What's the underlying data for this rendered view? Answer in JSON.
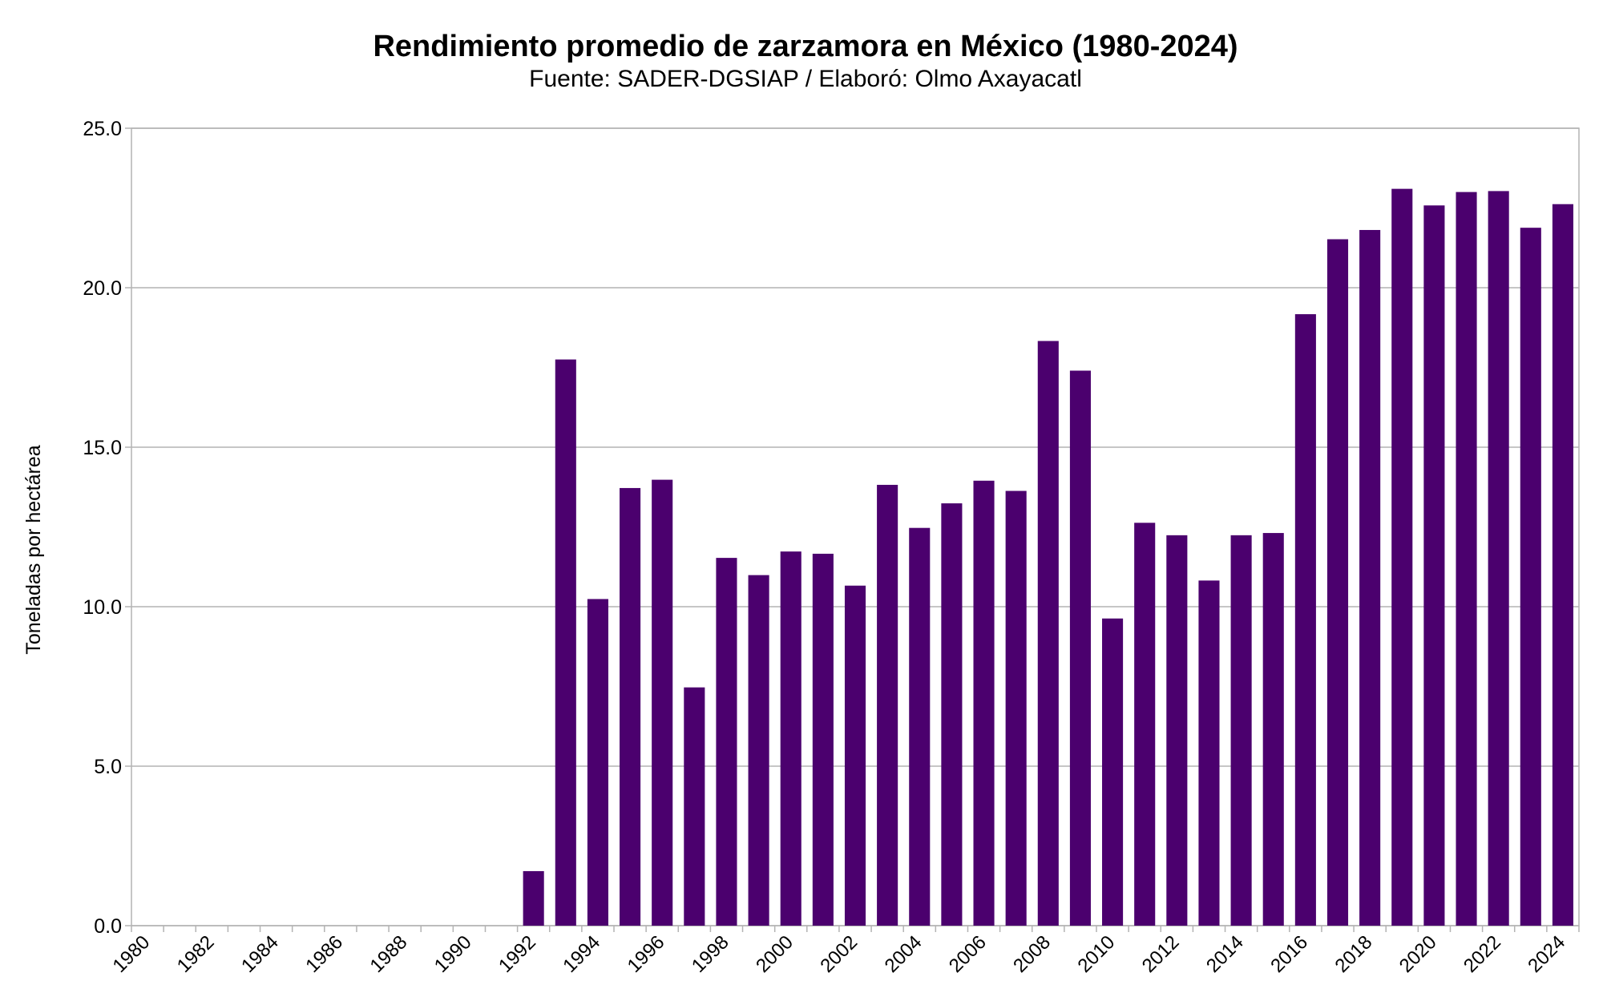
{
  "chart_data": {
    "type": "bar",
    "title": "Rendimiento promedio de zarzamora en México (1980-2024)",
    "subtitle": "Fuente: SADER-DGSIAP / Elaboró: Olmo Axayacatl",
    "xlabel": "",
    "ylabel": "Toneladas por hectárea",
    "ylim": [
      0,
      25
    ],
    "yticks": [
      "0.0",
      "5.0",
      "10.0",
      "15.0",
      "20.0",
      "25.0"
    ],
    "grid": true,
    "bar_color": "#4b006e",
    "categories": [
      "1980",
      "1981",
      "1982",
      "1983",
      "1984",
      "1985",
      "1986",
      "1987",
      "1988",
      "1989",
      "1990",
      "1991",
      "1992",
      "1993",
      "1994",
      "1995",
      "1996",
      "1997",
      "1998",
      "1999",
      "2000",
      "2001",
      "2002",
      "2003",
      "2004",
      "2005",
      "2006",
      "2007",
      "2008",
      "2009",
      "2010",
      "2011",
      "2012",
      "2013",
      "2014",
      "2015",
      "2016",
      "2017",
      "2018",
      "2019",
      "2020",
      "2021",
      "2022",
      "2023",
      "2024"
    ],
    "values": [
      null,
      null,
      null,
      null,
      null,
      null,
      null,
      null,
      null,
      null,
      null,
      null,
      1.71,
      17.75,
      10.24,
      13.72,
      13.98,
      7.47,
      11.53,
      10.99,
      11.73,
      11.66,
      10.66,
      13.82,
      12.47,
      13.24,
      13.95,
      13.63,
      18.33,
      17.4,
      9.63,
      12.63,
      12.24,
      10.82,
      12.24,
      12.31,
      19.17,
      21.52,
      21.81,
      23.1,
      22.58,
      23.0,
      23.03,
      21.88,
      22.62
    ]
  }
}
